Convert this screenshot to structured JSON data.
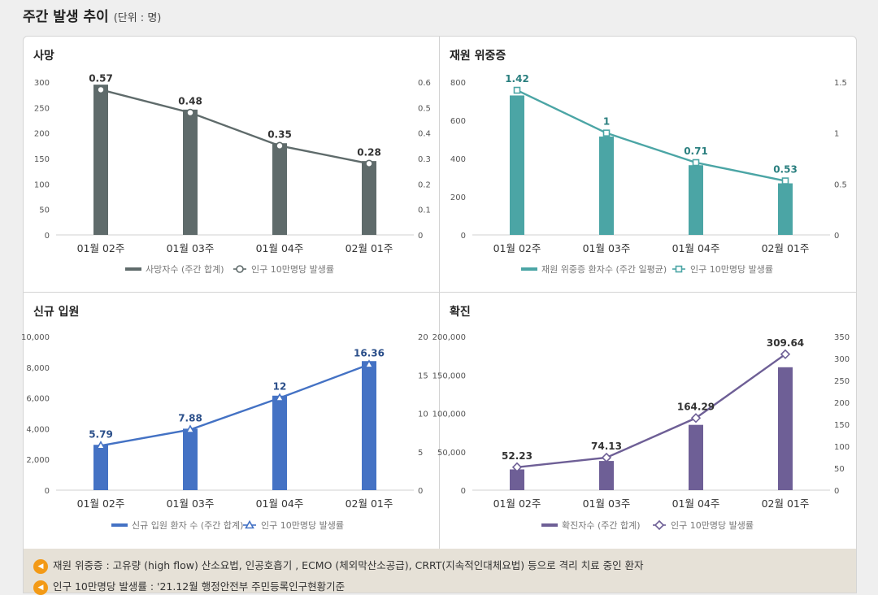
{
  "header": {
    "title": "주간 발생 추이",
    "unit": "(단위 : 명)"
  },
  "chart_data": [
    {
      "type": "bar",
      "title": "사망",
      "categories": [
        "01월 02주",
        "01월 03주",
        "01월 04주",
        "02월 01주"
      ],
      "color": "#5f6b6b",
      "series": [
        {
          "name": "사망자수 (주간 합계)",
          "values": [
            295,
            246,
            180,
            145
          ]
        },
        {
          "name": "인구 10만명당 발생률",
          "values": [
            0.57,
            0.48,
            0.35,
            0.28
          ]
        }
      ],
      "left_ticks": [
        "300",
        "250",
        "200",
        "150",
        "100",
        "50",
        "0"
      ],
      "right_ticks": [
        "0.6",
        "0.5",
        "0.4",
        "0.3",
        "0.2",
        "0.1",
        "0"
      ],
      "ylim": [
        0,
        300
      ],
      "y2lim": [
        0,
        0.6
      ],
      "marker": "circle"
    },
    {
      "type": "bar",
      "title": "재원 위중증",
      "categories": [
        "01월 02주",
        "01월 03주",
        "01월 04주",
        "02월 01주"
      ],
      "color": "#4ba5a5",
      "series": [
        {
          "name": "재원 위중증 환자수 (주간 일평균)",
          "values": [
            730,
            515,
            365,
            270
          ]
        },
        {
          "name": "인구 10만명당 발생률",
          "values": [
            1.42,
            1,
            0.71,
            0.53
          ]
        }
      ],
      "left_ticks": [
        "800",
        "600",
        "400",
        "200",
        "0"
      ],
      "right_ticks": [
        "1.5",
        "1",
        "0.5",
        "0"
      ],
      "ylim": [
        0,
        800
      ],
      "y2lim": [
        0,
        1.5
      ],
      "marker": "square"
    },
    {
      "type": "bar",
      "title": "신규 입원",
      "categories": [
        "01월 02주",
        "01월 03주",
        "01월 04주",
        "02월 01주"
      ],
      "color": "#4472c4",
      "series": [
        {
          "name": "신규 입원 환자 수 (주간 합계)",
          "values": [
            2950,
            4000,
            6150,
            8400
          ]
        },
        {
          "name": "인구 10만명당 발생률",
          "values": [
            5.79,
            7.88,
            12,
            16.36
          ]
        }
      ],
      "left_ticks": [
        "10,000",
        "8,000",
        "6,000",
        "4,000",
        "2,000",
        "0"
      ],
      "right_ticks": [
        "20",
        "15",
        "10",
        "5",
        "0"
      ],
      "ylim": [
        0,
        10000
      ],
      "y2lim": [
        0,
        20
      ],
      "marker": "triangle"
    },
    {
      "type": "bar",
      "title": "확진",
      "categories": [
        "01월 02주",
        "01월 03주",
        "01월 04주",
        "02월 01주"
      ],
      "color": "#6e5f96",
      "series": [
        {
          "name": "확진자수 (주간 합계)",
          "values": [
            27000,
            38000,
            85000,
            160000
          ]
        },
        {
          "name": "인구 10만명당 발생률",
          "values": [
            52.23,
            74.13,
            164.29,
            309.64
          ]
        }
      ],
      "left_ticks": [
        "200,000",
        "150,000",
        "100,000",
        "50,000",
        "0"
      ],
      "right_ticks": [
        "350",
        "300",
        "250",
        "200",
        "150",
        "100",
        "50",
        "0"
      ],
      "ylim": [
        0,
        200000
      ],
      "y2lim": [
        0,
        350
      ],
      "marker": "diamond"
    }
  ],
  "notes": [
    "재원 위중증 : 고유량 (high flow) 산소요법, 인공호흡기 , ECMO (체외막산소공급), CRRT(지속적인대체요법) 등으로 격리 치료 중인 환자",
    "인구 10만명당 발생률 : '21.12월 행정안전부 주민등록인구현황기준"
  ]
}
